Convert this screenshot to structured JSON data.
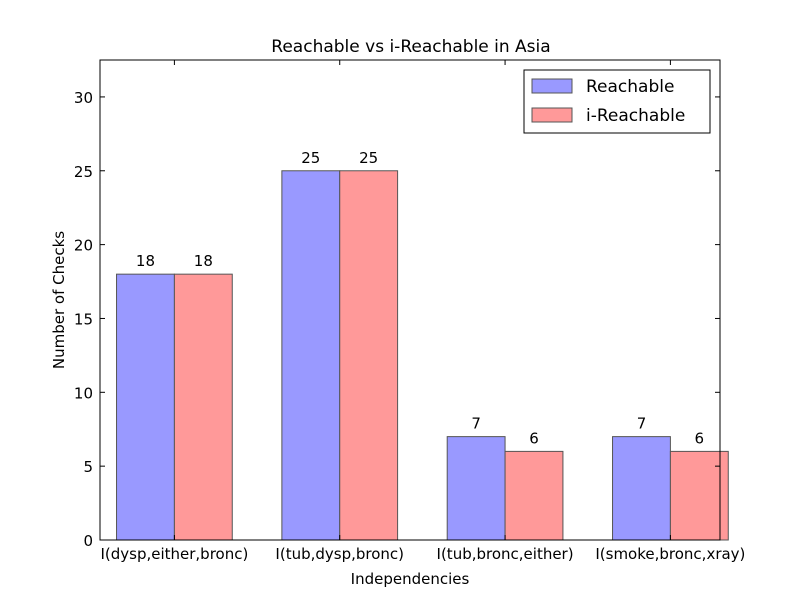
{
  "chart_data": {
    "type": "bar",
    "title": "Reachable vs i-Reachable in Asia",
    "xlabel": "Independencies",
    "ylabel": "Number of Checks",
    "categories": [
      "I(dysp,either,bronc)",
      "I(tub,dysp,bronc)",
      "I(tub,bronc,either)",
      "I(smoke,bronc,xray)"
    ],
    "series": [
      {
        "name": "Reachable",
        "values": [
          18,
          25,
          7,
          7
        ],
        "color": "#9999ff"
      },
      {
        "name": "i-Reachable",
        "values": [
          18,
          25,
          6,
          6
        ],
        "color": "#ff9999"
      }
    ],
    "ylim": [
      0,
      32.5
    ],
    "yticks": [
      0,
      5,
      10,
      15,
      20,
      25,
      30
    ],
    "grid": false,
    "legend_position": "top-right"
  }
}
